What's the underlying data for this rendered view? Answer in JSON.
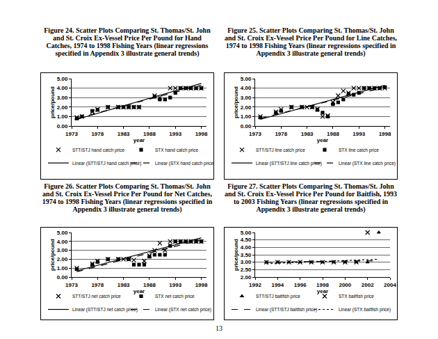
{
  "page_number": 13,
  "chart_data": [
    {
      "type": "scatter",
      "title": "Figure 24.  Scatter Plots Comparing St. Thomas/St. John and St. Croix Ex-Vessel Price Per Pound for Hand Catches, 1974 to 1998 Fishing Years (linear regressions specified in Appendix 3 illustrate general trends)",
      "x_label": "year",
      "y_label": "price/pound",
      "xlim": [
        1973,
        1999
      ],
      "xticks": [
        1973,
        1978,
        1983,
        1988,
        1993,
        1998
      ],
      "ylim": [
        0,
        5
      ],
      "yticks": [
        {
          "value": 0,
          "label": "0.00"
        },
        {
          "value": 1,
          "label": "1.00"
        },
        {
          "value": 2,
          "label": "2.00"
        },
        {
          "value": 3,
          "label": "3.00"
        },
        {
          "value": 4,
          "label": "4.00"
        },
        {
          "value": 5,
          "label": "5.00"
        }
      ],
      "grid": true,
      "legend": "bottom",
      "series": [
        {
          "name": "STT/STJ hand catch price",
          "type": "scatter",
          "marker": "x",
          "color": "#000000",
          "x": [
            1974,
            1975,
            1977,
            1978,
            1980,
            1982,
            1983,
            1984,
            1985,
            1986,
            1989,
            1990,
            1992,
            1993,
            1994,
            1995,
            1996,
            1997,
            1998
          ],
          "values": [
            0.9,
            1.0,
            1.5,
            1.75,
            2.0,
            2.0,
            2.0,
            2.0,
            2.0,
            2.0,
            3.2,
            3.0,
            4.0,
            4.0,
            4.0,
            4.0,
            4.0,
            4.0,
            4.0
          ]
        },
        {
          "name": "STX hand catch price",
          "type": "scatter",
          "marker": "square",
          "color": "#000000",
          "x": [
            1974,
            1975,
            1977,
            1978,
            1980,
            1982,
            1983,
            1984,
            1985,
            1986,
            1989,
            1990,
            1991,
            1992,
            1993,
            1994,
            1995,
            1996,
            1997,
            1998
          ],
          "values": [
            0.8,
            1.0,
            1.6,
            1.7,
            2.0,
            2.0,
            2.0,
            2.0,
            2.0,
            2.0,
            3.1,
            2.8,
            2.8,
            3.0,
            3.5,
            4.0,
            4.0,
            4.0,
            4.0,
            4.0
          ]
        },
        {
          "name": "Linear (STT/STJ hand catch price)",
          "type": "line",
          "line_style": "solid",
          "color": "#000000",
          "x": [
            1974,
            1998
          ],
          "values": [
            0.7,
            4.5
          ]
        },
        {
          "name": "Linear (STX hand catch price)",
          "type": "line",
          "line_style": "dashed",
          "color": "#000000",
          "x": [
            1974,
            1998
          ],
          "values": [
            0.8,
            4.3
          ]
        }
      ]
    },
    {
      "type": "scatter",
      "title": "Figure 25.  Scatter Plots Comparing St. Thomas/St. John and St. Croix Ex-Vessel Price Per Pound for Line Catches, 1974 to 1998 Fishing Years (linear regressions specified in Appendix 3 illustrate general trends)",
      "x_label": "year",
      "y_label": "price/pound",
      "xlim": [
        1973,
        1999
      ],
      "xticks": [
        1973,
        1978,
        1983,
        1988,
        1993,
        1998
      ],
      "ylim": [
        0,
        5
      ],
      "yticks": [
        {
          "value": 0,
          "label": "0.00"
        },
        {
          "value": 1,
          "label": "1.00"
        },
        {
          "value": 2,
          "label": "2.00"
        },
        {
          "value": 3,
          "label": "3.00"
        },
        {
          "value": 4,
          "label": "4.00"
        },
        {
          "value": 5,
          "label": "5.00"
        }
      ],
      "grid": true,
      "legend": "bottom",
      "series": [
        {
          "name": "STT/STJ line catch price",
          "type": "scatter",
          "marker": "x",
          "color": "#000000",
          "x": [
            1974,
            1977,
            1978,
            1980,
            1982,
            1983,
            1984,
            1985,
            1986,
            1987,
            1988,
            1989,
            1990,
            1991,
            1992,
            1993,
            1994,
            1995,
            1996,
            1997,
            1998
          ],
          "values": [
            1.0,
            1.5,
            1.75,
            2.0,
            2.0,
            2.0,
            2.0,
            1.8,
            1.0,
            1.1,
            2.5,
            3.2,
            3.7,
            3.5,
            4.0,
            4.0,
            4.0,
            4.0,
            4.0,
            4.0,
            4.0
          ]
        },
        {
          "name": "STX line catch price",
          "type": "scatter",
          "marker": "square",
          "color": "#000000",
          "x": [
            1974,
            1977,
            1978,
            1980,
            1982,
            1984,
            1985,
            1986,
            1987,
            1988,
            1989,
            1990,
            1991,
            1992,
            1993,
            1994,
            1995,
            1996,
            1997,
            1998
          ],
          "values": [
            0.9,
            1.4,
            1.6,
            2.0,
            2.0,
            2.0,
            1.7,
            1.4,
            1.0,
            2.3,
            2.5,
            2.8,
            3.4,
            3.3,
            3.5,
            4.0,
            4.0,
            4.0,
            4.0,
            4.1
          ]
        },
        {
          "name": "Linear (STT/STJ line catch price)",
          "type": "line",
          "line_style": "solid",
          "color": "#000000",
          "x": [
            1974,
            1998
          ],
          "values": [
            0.7,
            4.3
          ]
        },
        {
          "name": "Linear (STX line catch price)",
          "type": "line",
          "line_style": "dashed",
          "color": "#000000",
          "x": [
            1974,
            1998
          ],
          "values": [
            0.8,
            4.1
          ]
        }
      ]
    },
    {
      "type": "scatter",
      "title": "Figure 26.  Scatter Plots Comparing St. Thomas/St. John and St. Croix Ex-Vessel Price Per Pound for Net Catches, 1974 to 1998 Fishing Years (linear regressions specified in Appendix 3 illustrate general trends)",
      "x_label": "year",
      "y_label": "price/pound",
      "xlim": [
        1973,
        1999
      ],
      "xticks": [
        1973,
        1978,
        1983,
        1988,
        1993,
        1998
      ],
      "ylim": [
        0,
        5
      ],
      "yticks": [
        {
          "value": 0,
          "label": "0.00"
        },
        {
          "value": 1,
          "label": "1.00"
        },
        {
          "value": 2,
          "label": "2.00"
        },
        {
          "value": 3,
          "label": "3.00"
        },
        {
          "value": 4,
          "label": "4.00"
        },
        {
          "value": 5,
          "label": "5.00"
        }
      ],
      "grid": true,
      "legend": "bottom",
      "series": [
        {
          "name": "STT/STJ net catch price",
          "type": "scatter",
          "marker": "x",
          "color": "#000000",
          "x": [
            1974,
            1977,
            1978,
            1980,
            1982,
            1983,
            1984,
            1985,
            1987,
            1988,
            1989,
            1990,
            1991,
            1992,
            1993,
            1994,
            1995,
            1996,
            1997,
            1998
          ],
          "values": [
            1.0,
            1.5,
            1.8,
            2.0,
            2.0,
            2.0,
            2.0,
            1.9,
            1.8,
            2.4,
            3.0,
            3.8,
            3.0,
            4.0,
            4.0,
            4.0,
            4.0,
            4.0,
            4.0,
            4.0
          ]
        },
        {
          "name": "STX net catch price",
          "type": "scatter",
          "marker": "square",
          "color": "#000000",
          "x": [
            1974,
            1977,
            1978,
            1980,
            1982,
            1984,
            1985,
            1986,
            1987,
            1988,
            1989,
            1990,
            1991,
            1992,
            1993,
            1994,
            1995,
            1996,
            1997,
            1998
          ],
          "values": [
            0.9,
            1.4,
            1.7,
            2.0,
            2.0,
            2.0,
            1.4,
            1.4,
            1.4,
            2.3,
            2.5,
            2.5,
            2.5,
            3.5,
            4.0,
            4.0,
            4.0,
            4.0,
            4.0,
            4.0
          ]
        },
        {
          "name": "Linear (STT/STJ net catch price)",
          "type": "line",
          "line_style": "solid",
          "color": "#000000",
          "x": [
            1974,
            1998
          ],
          "values": [
            0.7,
            4.4
          ]
        },
        {
          "name": "Linear (STX net catch price)",
          "type": "line",
          "line_style": "dashed",
          "color": "#000000",
          "x": [
            1974,
            1998
          ],
          "values": [
            0.6,
            4.2
          ]
        }
      ]
    },
    {
      "type": "scatter",
      "title": "Figure 27.  Scatter Plots Comparing St. Thomas/St. John and St. Croix Ex-Vessel Price Per Pound for Baitfish, 1993 to 2003 Fishing Years (linear regressions specified in Appendix 3 illustrate general trends)",
      "x_label": "year",
      "y_label": "price/pound",
      "xlim": [
        1992,
        2004
      ],
      "xticks": [
        1992,
        1994,
        1996,
        1998,
        2000,
        2002,
        2004
      ],
      "ylim": [
        2,
        5
      ],
      "yticks": [
        {
          "value": 2,
          "label": "2.00"
        },
        {
          "value": 2.5,
          "label": "2.50"
        },
        {
          "value": 3,
          "label": "3.00"
        },
        {
          "value": 3.5,
          "label": "3.50"
        },
        {
          "value": 4,
          "label": "4.00"
        },
        {
          "value": 4.5,
          "label": "4.50"
        },
        {
          "value": 5,
          "label": "5.00"
        }
      ],
      "grid": true,
      "legend": "bottom",
      "series": [
        {
          "name": "STT/STJ baitfish price",
          "type": "scatter",
          "marker": "triangle",
          "color": "#000000",
          "x": [
            1993,
            1994,
            1995,
            1996,
            1997,
            1998,
            1999,
            2000,
            2001,
            2002,
            2003
          ],
          "values": [
            3.0,
            3.0,
            3.0,
            3.0,
            3.0,
            3.0,
            3.0,
            3.0,
            3.0,
            3.0,
            5.0
          ]
        },
        {
          "name": "STX baitfish price",
          "type": "scatter",
          "marker": "x",
          "color": "#000000",
          "x": [
            1993,
            1994,
            1995,
            1996,
            1997,
            1998,
            1999,
            2000,
            2001,
            2002
          ],
          "values": [
            3.0,
            3.0,
            3.0,
            3.0,
            3.0,
            3.0,
            3.0,
            3.0,
            3.0,
            5.0
          ]
        },
        {
          "name": "Linear (STT/STJ baitfish price)",
          "type": "line",
          "line_style": "dashed",
          "color": "#000000",
          "x": [
            1993,
            2003
          ],
          "values": [
            3.0,
            3.1
          ]
        },
        {
          "name": "Linear (STX baitfish price)",
          "type": "line",
          "line_style": "dotted",
          "color": "#000000",
          "x": [
            1993,
            2003
          ],
          "values": [
            2.9,
            3.2
          ]
        }
      ]
    }
  ]
}
